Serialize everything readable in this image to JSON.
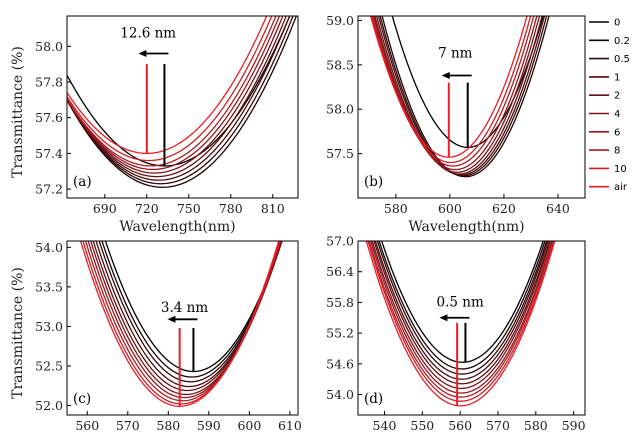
{
  "series_colors": [
    "#000000",
    "#1c0405",
    "#33080a",
    "#4a0c0f",
    "#621014",
    "#7a1418",
    "#94181d",
    "#b01c22",
    "#cc1f26",
    "#ee1c25"
  ],
  "legend": [
    "0",
    "0.2",
    "0.5",
    "1",
    "2",
    "4",
    "6",
    "8",
    "10",
    "air"
  ],
  "chart_data": [
    {
      "type": "line",
      "panel_label": "(a)",
      "xlabel": "Wavelength(nm)",
      "ylabel": "Transmittance (%)",
      "xlim": [
        663,
        828
      ],
      "ylim": [
        57.15,
        58.17
      ],
      "xticks": [
        690,
        720,
        750,
        780,
        810
      ],
      "yticks": [
        57.2,
        57.4,
        57.6,
        57.8,
        58.0
      ],
      "xtick_labels": [
        "690",
        "720",
        "750",
        "780",
        "810"
      ],
      "ytick_labels": [
        "57.2",
        "57.4",
        "57.6",
        "57.8",
        "58.0"
      ],
      "curve_k": 0.000105,
      "series": [
        {
          "x0": 732.6,
          "y0": 57.33
        },
        {
          "x0": 731.2,
          "y0": 57.21
        },
        {
          "x0": 729.8,
          "y0": 57.23
        },
        {
          "x0": 728.4,
          "y0": 57.25
        },
        {
          "x0": 727.0,
          "y0": 57.27
        },
        {
          "x0": 725.6,
          "y0": 57.29
        },
        {
          "x0": 724.2,
          "y0": 57.31
        },
        {
          "x0": 722.8,
          "y0": 57.33
        },
        {
          "x0": 721.4,
          "y0": 57.36
        },
        {
          "x0": 720.0,
          "y0": 57.4
        }
      ],
      "annotation": {
        "text": "12.6 nm",
        "text_x": 721,
        "text_y": 58.05,
        "from_x": 732.6,
        "to_x": 720.0,
        "arrow_y": 57.96,
        "top_y": 57.9
      }
    },
    {
      "type": "line",
      "panel_label": "(b)",
      "xlabel": "Wavelength(nm)",
      "ylabel": "",
      "xlim": [
        566,
        650
      ],
      "ylim": [
        57.0,
        59.05
      ],
      "xticks": [
        580,
        600,
        620,
        640
      ],
      "yticks": [
        57.5,
        58.0,
        58.5,
        59.0
      ],
      "xtick_labels": [
        "580",
        "600",
        "620",
        "640"
      ],
      "ytick_labels": [
        "57.5",
        "58.0",
        "58.5",
        "59.0"
      ],
      "curve_k": 0.0019,
      "series": [
        {
          "x0": 606.6,
          "y0": 57.57
        },
        {
          "x0": 605.8,
          "y0": 57.24
        },
        {
          "x0": 605.0,
          "y0": 57.25
        },
        {
          "x0": 604.3,
          "y0": 57.26
        },
        {
          "x0": 603.5,
          "y0": 57.27
        },
        {
          "x0": 602.7,
          "y0": 57.29
        },
        {
          "x0": 602.0,
          "y0": 57.32
        },
        {
          "x0": 601.2,
          "y0": 57.36
        },
        {
          "x0": 600.4,
          "y0": 57.4
        },
        {
          "x0": 599.6,
          "y0": 57.46
        }
      ],
      "annotation": {
        "text": "7 nm",
        "text_x": 602,
        "text_y": 58.58,
        "from_x": 606.6,
        "to_x": 599.6,
        "arrow_y": 58.38,
        "top_y": 58.3
      }
    },
    {
      "type": "line",
      "panel_label": "(c)",
      "xlabel": "",
      "ylabel": "Transmittance (%)",
      "xlim": [
        555,
        612
      ],
      "ylim": [
        51.88,
        54.08
      ],
      "xticks": [
        560,
        570,
        580,
        590,
        600,
        610
      ],
      "yticks": [
        52.0,
        52.5,
        53.0,
        53.5,
        54.0
      ],
      "xtick_labels": [
        "560",
        "570",
        "580",
        "590",
        "600",
        "610"
      ],
      "ytick_labels": [
        "52.0",
        "52.5",
        "53.0",
        "53.5",
        "54.0"
      ],
      "curve_k": 0.0035,
      "series": [
        {
          "x0": 586.2,
          "y0": 52.43
        },
        {
          "x0": 585.8,
          "y0": 52.36
        },
        {
          "x0": 585.5,
          "y0": 52.3
        },
        {
          "x0": 585.1,
          "y0": 52.24
        },
        {
          "x0": 584.7,
          "y0": 52.19
        },
        {
          "x0": 584.4,
          "y0": 52.14
        },
        {
          "x0": 584.0,
          "y0": 52.1
        },
        {
          "x0": 583.6,
          "y0": 52.06
        },
        {
          "x0": 583.2,
          "y0": 52.02
        },
        {
          "x0": 582.8,
          "y0": 51.99
        }
      ],
      "annotation": {
        "text": "3.4 nm",
        "text_x": 584,
        "text_y": 53.18,
        "from_x": 586.2,
        "to_x": 582.8,
        "arrow_y": 53.09,
        "top_y": 52.98
      }
    },
    {
      "type": "line",
      "panel_label": "(d)",
      "xlabel": "",
      "ylabel": "",
      "xlim": [
        533,
        593
      ],
      "ylim": [
        53.6,
        57.0
      ],
      "xticks": [
        540,
        550,
        560,
        570,
        580,
        590
      ],
      "yticks": [
        54.0,
        54.6,
        55.2,
        55.8,
        56.4,
        57.0
      ],
      "xtick_labels": [
        "540",
        "550",
        "560",
        "570",
        "580",
        "590"
      ],
      "ytick_labels": [
        "54.0",
        "54.6",
        "55.2",
        "55.8",
        "56.4",
        "57.0"
      ],
      "curve_k": 0.0052,
      "series": [
        {
          "x0": 560.6,
          "y0": 54.63
        },
        {
          "x0": 560.5,
          "y0": 54.5
        },
        {
          "x0": 560.5,
          "y0": 54.4
        },
        {
          "x0": 560.4,
          "y0": 54.3
        },
        {
          "x0": 560.4,
          "y0": 54.21
        },
        {
          "x0": 560.3,
          "y0": 54.12
        },
        {
          "x0": 560.3,
          "y0": 54.03
        },
        {
          "x0": 560.2,
          "y0": 53.95
        },
        {
          "x0": 560.2,
          "y0": 53.87
        },
        {
          "x0": 560.1,
          "y0": 53.78
        }
      ],
      "annotation": {
        "text": "0.5 nm",
        "text_x": 560,
        "text_y": 55.72,
        "from_x": 561.4,
        "to_x": 559.2,
        "arrow_y": 55.5,
        "top_y": 55.4
      }
    }
  ]
}
